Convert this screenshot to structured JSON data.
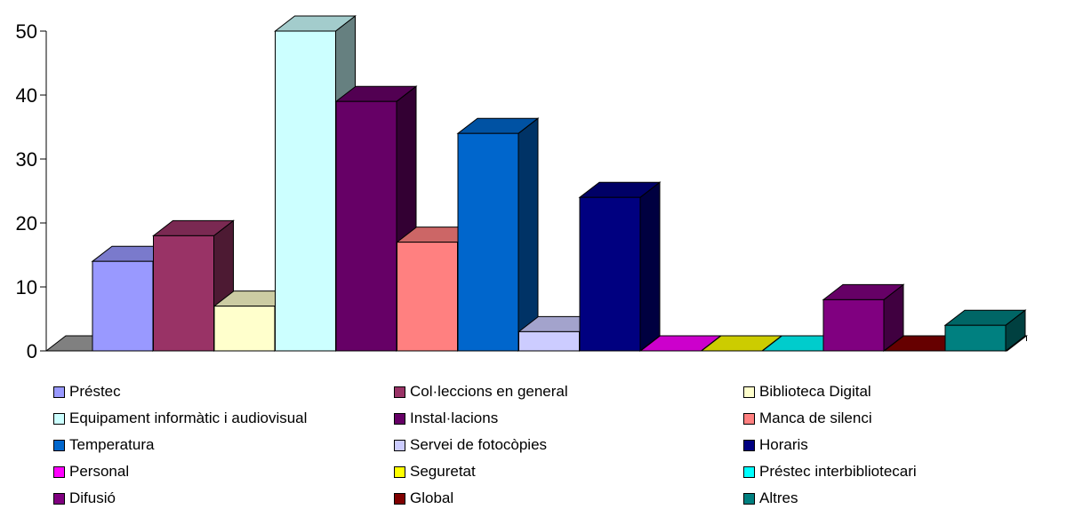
{
  "chart_data": {
    "type": "bar",
    "title": "",
    "xlabel": "",
    "ylabel": "",
    "ylim": [
      0,
      50
    ],
    "yticks": [
      0,
      10,
      20,
      30,
      40,
      50
    ],
    "grid": false,
    "legend_position": "bottom",
    "series": [
      {
        "name": "Préstec",
        "value": 14,
        "color": "#9999ff"
      },
      {
        "name": "Col·leccions en general",
        "value": 18,
        "color": "#993366"
      },
      {
        "name": "Biblioteca Digital",
        "value": 7,
        "color": "#ffffcc"
      },
      {
        "name": "Equipament informàtic i audiovisual",
        "value": 50,
        "color": "#ccffff"
      },
      {
        "name": "Instal·lacions",
        "value": 39,
        "color": "#660066"
      },
      {
        "name": "Manca de silenci",
        "value": 17,
        "color": "#ff8080"
      },
      {
        "name": "Temperatura",
        "value": 34,
        "color": "#0066cc"
      },
      {
        "name": "Servei de fotocòpies",
        "value": 3,
        "color": "#ccccff"
      },
      {
        "name": "Horaris",
        "value": 24,
        "color": "#000080"
      },
      {
        "name": "Personal",
        "value": 0,
        "color": "#ff00ff"
      },
      {
        "name": "Seguretat",
        "value": 0,
        "color": "#ffff00"
      },
      {
        "name": "Préstec interbibliotecari",
        "value": 0,
        "color": "#00ffff"
      },
      {
        "name": "Difusió",
        "value": 8,
        "color": "#800080"
      },
      {
        "name": "Global",
        "value": 0,
        "color": "#800000"
      },
      {
        "name": "Altres",
        "value": 4,
        "color": "#008080"
      }
    ]
  }
}
